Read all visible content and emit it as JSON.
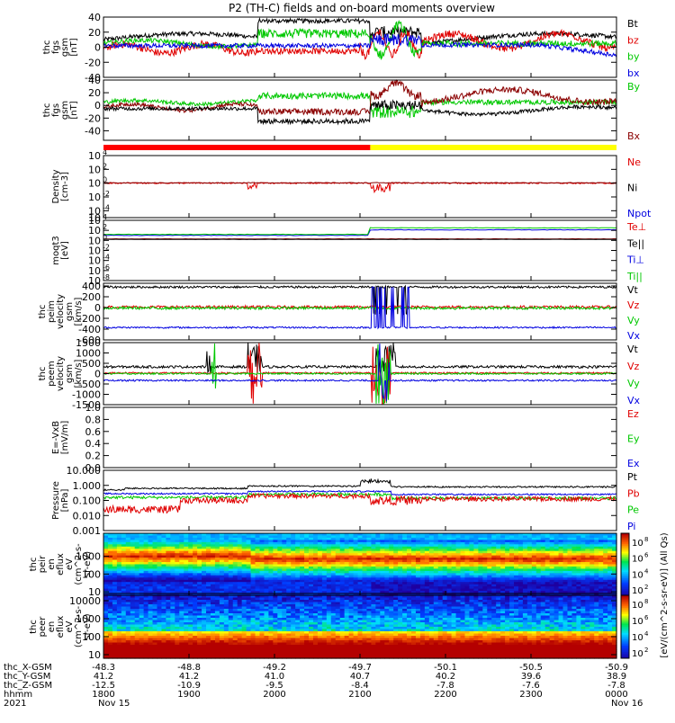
{
  "title": "P2 (TH-C) fields and on-board moments overview",
  "colors": {
    "black": "#000000",
    "red": "#e00000",
    "green": "#00c800",
    "blue": "#0000e0",
    "darkred": "#8b0000",
    "yellow": "#ffff00"
  },
  "chart_data": [
    {
      "type": "line",
      "id": "fgs",
      "ylabel": [
        "thc",
        "fgs",
        "gsm",
        "[nT]"
      ],
      "ylim": [
        -40,
        40
      ],
      "ticks": [
        "40",
        "20",
        "0",
        "-20",
        "-40"
      ],
      "tick_values": [
        40,
        20,
        0,
        -20,
        -40
      ],
      "legend": [
        {
          "label": "Bt",
          "color": "#000000"
        },
        {
          "label": "bz",
          "color": "#e00000"
        },
        {
          "label": "by",
          "color": "#00c800"
        },
        {
          "label": "bx",
          "color": "#0000e0"
        }
      ]
    },
    {
      "type": "line",
      "id": "fgs2",
      "ylabel": [
        "thc",
        "fgs",
        "gsm",
        "[nT]"
      ],
      "ylim": [
        -55,
        40
      ],
      "ticks": [
        "40",
        "20",
        "0",
        "-20",
        "-40"
      ],
      "tick_values": [
        40,
        20,
        0,
        -20,
        -40
      ],
      "legend": [
        {
          "label": "By",
          "color": "#00c800"
        },
        {
          "label": "Bx",
          "color": "#8b0000"
        }
      ]
    },
    {
      "type": "line",
      "id": "density",
      "log": true,
      "ylabel": [
        "Density",
        "[cm-3]"
      ],
      "ylim_exp": [
        -5,
        4
      ],
      "ticks": [
        "10",
        "10",
        "10",
        "10",
        "10",
        "10"
      ],
      "tick_exps": [
        "4",
        "2",
        "0",
        "-2",
        "-4",
        ""
      ],
      "tick_values": [
        4,
        2,
        0,
        -2,
        -4,
        -5
      ],
      "legend": [
        {
          "label": "Ne",
          "color": "#e00000"
        },
        {
          "label": "Ni",
          "color": "#000000"
        },
        {
          "label": "Npot",
          "color": "#0000e0"
        }
      ]
    },
    {
      "type": "line",
      "id": "temp",
      "log": true,
      "ylabel": [
        "moqt3",
        "[eV]"
      ],
      "ylim_exp": [
        -8,
        4
      ],
      "ticks": [
        "10",
        "10",
        "10",
        "10",
        "10",
        "10",
        "10"
      ],
      "tick_exps": [
        "4",
        "2",
        "0",
        "-2",
        "-4",
        "-6",
        "-8"
      ],
      "tick_values": [
        4,
        2,
        0,
        -2,
        -4,
        -6,
        -8
      ],
      "legend": [
        {
          "label": "Te⊥",
          "color": "#e00000"
        },
        {
          "label": "Te||",
          "color": "#000000"
        },
        {
          "label": "Ti⊥",
          "color": "#0000e0"
        },
        {
          "label": "Ti||",
          "color": "#00c800"
        }
      ]
    },
    {
      "type": "line",
      "id": "peim",
      "ylabel": [
        "thc",
        "peim",
        "velocity",
        "gsm",
        "[km/s]"
      ],
      "ylim": [
        -600,
        450
      ],
      "ticks": [
        "400",
        "200",
        "0",
        "-200",
        "-400",
        "-600"
      ],
      "tick_values": [
        400,
        200,
        0,
        -200,
        -400,
        -600
      ],
      "legend": [
        {
          "label": "Vt",
          "color": "#000000"
        },
        {
          "label": "Vz",
          "color": "#e00000"
        },
        {
          "label": "Vy",
          "color": "#00c800"
        },
        {
          "label": "Vx",
          "color": "#0000e0"
        }
      ]
    },
    {
      "type": "line",
      "id": "peem",
      "ylabel": [
        "thc",
        "peem",
        "velocity",
        "gsm",
        "[km/s]"
      ],
      "ylim": [
        -1500,
        1500
      ],
      "ticks": [
        "1500",
        "1000",
        "500",
        "0",
        "-500",
        "-1000",
        "-1500"
      ],
      "tick_values": [
        1500,
        1000,
        500,
        0,
        -500,
        -1000,
        -1500
      ],
      "legend": [
        {
          "label": "Vt",
          "color": "#000000"
        },
        {
          "label": "Vz",
          "color": "#e00000"
        },
        {
          "label": "Vy",
          "color": "#00c800"
        },
        {
          "label": "Vx",
          "color": "#0000e0"
        }
      ]
    },
    {
      "type": "line",
      "id": "efield",
      "ylabel": [
        "E=-VxB",
        "[mV/m]"
      ],
      "ylim": [
        0,
        1.0
      ],
      "ticks": [
        "1.0",
        "0.8",
        "0.6",
        "0.4",
        "0.2",
        "0.0"
      ],
      "tick_values": [
        1.0,
        0.8,
        0.6,
        0.4,
        0.2,
        0.0
      ],
      "legend": [
        {
          "label": "Ez",
          "color": "#e00000"
        },
        {
          "label": "Ey",
          "color": "#00c800"
        },
        {
          "label": "Ex",
          "color": "#0000e0"
        }
      ]
    },
    {
      "type": "line",
      "id": "pressure",
      "log": true,
      "ylabel": [
        "Pressure",
        "[nPa]"
      ],
      "ylim_exp": [
        -3,
        1
      ],
      "ticks": [
        "10.000",
        "1.000",
        "0.100",
        "0.010",
        "0.001"
      ],
      "tick_values": [
        1,
        0,
        -1,
        -2,
        -3
      ],
      "legend": [
        {
          "label": "Pt",
          "color": "#000000"
        },
        {
          "label": "Pb",
          "color": "#e00000"
        },
        {
          "label": "Pe",
          "color": "#00c800"
        },
        {
          "label": "Pi",
          "color": "#0000e0"
        }
      ]
    },
    {
      "type": "heatmap",
      "id": "peir",
      "log": true,
      "ylabel": [
        "thc",
        "peir",
        "en",
        "eflux",
        "eV",
        "(cm^2-s-",
        "sr-eV)"
      ],
      "ylim_exp": [
        0.8,
        4.3
      ],
      "ticks": [
        "1000",
        "100",
        "10"
      ],
      "tick_values": [
        3,
        2,
        1
      ]
    },
    {
      "type": "heatmap",
      "id": "peer",
      "log": true,
      "ylabel": [
        "thc",
        "peer",
        "en",
        "eflux",
        "eV",
        "(cm^2-s-",
        "sr-eV)"
      ],
      "ylim_exp": [
        0.8,
        4.3
      ],
      "ticks": [
        "10000",
        "1000",
        "100",
        "10"
      ],
      "tick_values": [
        4,
        3,
        2,
        1
      ]
    }
  ],
  "colorbar": {
    "label": "[eV/(cm^2-s-sr-eV)] (All Qs)",
    "ticks_top": [
      "10",
      "10",
      "10",
      "10"
    ],
    "ticks_top_exp": [
      "8",
      "6",
      "4",
      "2"
    ],
    "ticks_bottom": [
      "10",
      "10",
      "10",
      "10"
    ],
    "ticks_bottom_exp": [
      "8",
      "6",
      "4",
      "2"
    ]
  },
  "xaxis": {
    "rows": [
      {
        "label": "thc_X-GSM",
        "values": [
          "-48.3",
          "-48.8",
          "-49.2",
          "-49.7",
          "-50.1",
          "-50.5",
          "-50.9"
        ]
      },
      {
        "label": "thc_Y-GSM",
        "values": [
          "41.2",
          "41.2",
          "41.0",
          "40.7",
          "40.2",
          "39.6",
          "38.9"
        ]
      },
      {
        "label": "thc_Z-GSM",
        "values": [
          "-12.5",
          "-10.9",
          "-9.5",
          "-8.4",
          "-7.8",
          "-7.6",
          "-7.8"
        ]
      },
      {
        "label": "hhmm",
        "values": [
          "1800",
          "1900",
          "2000",
          "2100",
          "2200",
          "2300",
          "0000"
        ]
      },
      {
        "label": "2021",
        "values": [
          "Nov 15",
          "",
          "",
          "",
          "",
          "",
          "Nov 16"
        ]
      }
    ]
  }
}
